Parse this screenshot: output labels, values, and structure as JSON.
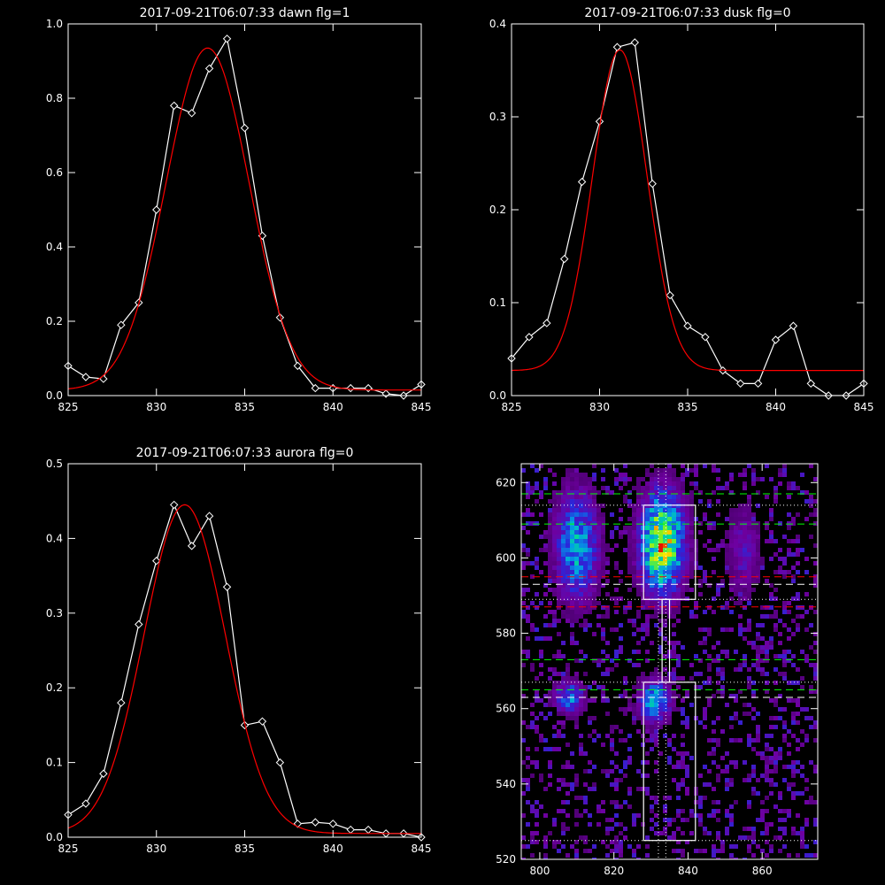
{
  "chart_data": [
    {
      "type": "line",
      "title": "2017-09-21T06:07:33 dawn flg=1",
      "xlim": [
        825,
        845
      ],
      "ylim": [
        0,
        1.0
      ],
      "xticks": [
        825,
        830,
        835,
        840,
        845
      ],
      "xtick_labels": [
        "825",
        "830",
        "835",
        "840",
        "845"
      ],
      "yticks": [
        0,
        0.2,
        0.4,
        0.6,
        0.8,
        1.0
      ],
      "ytick_labels": [
        "0.0",
        "0.2",
        "0.4",
        "0.6",
        "0.8",
        "1.0"
      ],
      "series": [
        {
          "color": "#ffffff",
          "marker": "diamond",
          "x": [
            825,
            826,
            827,
            828,
            829,
            830,
            831,
            832,
            833,
            834,
            835,
            836,
            837,
            838,
            839,
            840,
            841,
            842,
            843,
            844,
            845
          ],
          "y": [
            0.08,
            0.05,
            0.045,
            0.19,
            0.25,
            0.5,
            0.78,
            0.76,
            0.88,
            0.96,
            0.72,
            0.43,
            0.21,
            0.08,
            0.02,
            0.02,
            0.02,
            0.02,
            0.005,
            0.0,
            0.03
          ]
        },
        {
          "color": "#ff0000",
          "marker": "none",
          "fit": "gaussian",
          "amplitude": 0.92,
          "center": 832.9,
          "sigma": 2.35,
          "baseline": 0.015
        }
      ]
    },
    {
      "type": "line",
      "title": "2017-09-21T06:07:33 dusk flg=0",
      "xlim": [
        825,
        845
      ],
      "ylim": [
        0,
        0.4
      ],
      "xticks": [
        825,
        830,
        835,
        840,
        845
      ],
      "xtick_labels": [
        "825",
        "830",
        "835",
        "840",
        "845"
      ],
      "yticks": [
        0,
        0.1,
        0.2,
        0.3,
        0.4
      ],
      "ytick_labels": [
        "0.0",
        "0.1",
        "0.2",
        "0.3",
        "0.4"
      ],
      "series": [
        {
          "color": "#ffffff",
          "marker": "diamond",
          "x": [
            825,
            826,
            827,
            828,
            829,
            830,
            831,
            832,
            833,
            834,
            835,
            836,
            837,
            838,
            839,
            840,
            841,
            842,
            843,
            844,
            845
          ],
          "y": [
            0.04,
            0.063,
            0.078,
            0.147,
            0.23,
            0.295,
            0.375,
            0.38,
            0.228,
            0.108,
            0.075,
            0.063,
            0.027,
            0.013,
            0.013,
            0.06,
            0.075,
            0.013,
            0.0,
            0.0,
            0.013
          ]
        },
        {
          "color": "#ff0000",
          "marker": "none",
          "fit": "gaussian",
          "amplitude": 0.345,
          "center": 831.15,
          "sigma": 1.55,
          "baseline": 0.027
        }
      ]
    },
    {
      "type": "line",
      "title": "2017-09-21T06:07:33 aurora flg=0",
      "xlim": [
        825,
        845
      ],
      "ylim": [
        0,
        0.5
      ],
      "xticks": [
        825,
        830,
        835,
        840,
        845
      ],
      "xtick_labels": [
        "825",
        "830",
        "835",
        "840",
        "845"
      ],
      "yticks": [
        0,
        0.1,
        0.2,
        0.3,
        0.4,
        0.5
      ],
      "ytick_labels": [
        "0.0",
        "0.1",
        "0.2",
        "0.3",
        "0.4",
        "0.5"
      ],
      "series": [
        {
          "color": "#ffffff",
          "marker": "diamond",
          "x": [
            825,
            826,
            827,
            828,
            829,
            830,
            831,
            832,
            833,
            834,
            835,
            836,
            837,
            838,
            839,
            840,
            841,
            842,
            843,
            844,
            845
          ],
          "y": [
            0.03,
            0.045,
            0.085,
            0.18,
            0.285,
            0.37,
            0.445,
            0.39,
            0.43,
            0.335,
            0.15,
            0.155,
            0.1,
            0.018,
            0.02,
            0.018,
            0.01,
            0.01,
            0.005,
            0.005,
            0.0
          ]
        },
        {
          "color": "#ff0000",
          "marker": "none",
          "fit": "gaussian",
          "amplitude": 0.44,
          "center": 831.6,
          "sigma": 2.3,
          "baseline": 0.005
        }
      ]
    },
    {
      "type": "heatmap",
      "title": "",
      "xlim": [
        795,
        875
      ],
      "ylim": [
        520,
        625
      ],
      "xticks": [
        800,
        820,
        840,
        860
      ],
      "xtick_labels": [
        "800",
        "820",
        "840",
        "860"
      ],
      "yticks": [
        520,
        540,
        560,
        580,
        600,
        620
      ],
      "ytick_labels": [
        "520",
        "540",
        "560",
        "580",
        "600",
        "620"
      ],
      "colormap": "rainbow",
      "hotspots": [
        {
          "x": 810,
          "y": 603,
          "w": 4,
          "h": 10,
          "intensity": 0.55
        },
        {
          "x": 833,
          "y": 604,
          "w": 4,
          "h": 9,
          "intensity": 0.95
        },
        {
          "x": 855,
          "y": 602,
          "w": 3,
          "h": 8,
          "intensity": 0.25
        },
        {
          "x": 808,
          "y": 563,
          "w": 3,
          "h": 3,
          "intensity": 0.45
        },
        {
          "x": 831,
          "y": 562,
          "w": 3,
          "h": 4,
          "intensity": 0.55
        }
      ],
      "boxes": [
        {
          "x0": 828,
          "x1": 842,
          "y0": 589,
          "y1": 614,
          "color": "#ffffff"
        },
        {
          "x0": 828,
          "x1": 842,
          "y0": 525,
          "y1": 567,
          "color": "#ffffff"
        },
        {
          "x0": 833,
          "x1": 835,
          "y0": 567,
          "y1": 589,
          "color": "#ffffff"
        }
      ],
      "hlines": [
        {
          "y": 617,
          "color": "#00ff00",
          "style": "dash"
        },
        {
          "y": 609,
          "color": "#00ff00",
          "style": "dash"
        },
        {
          "y": 573,
          "color": "#00ff00",
          "style": "dash"
        },
        {
          "y": 565,
          "color": "#00ff00",
          "style": "dash"
        },
        {
          "y": 595,
          "color": "#ff0000",
          "style": "dash"
        },
        {
          "y": 587,
          "color": "#ff0000",
          "style": "dash"
        },
        {
          "y": 593,
          "color": "#ffffff",
          "style": "dash"
        },
        {
          "y": 563,
          "color": "#ffffff",
          "style": "dash"
        },
        {
          "y": 614,
          "color": "#ffffff",
          "style": "dot"
        },
        {
          "y": 589,
          "color": "#ffffff",
          "style": "dot"
        },
        {
          "y": 567,
          "color": "#ffffff",
          "style": "dot"
        },
        {
          "y": 525,
          "color": "#ffffff",
          "style": "dot"
        }
      ],
      "vlines": [
        {
          "x": 832,
          "color": "#ffffff",
          "style": "dot"
        },
        {
          "x": 834,
          "color": "#ffffff",
          "style": "dot"
        }
      ]
    }
  ]
}
